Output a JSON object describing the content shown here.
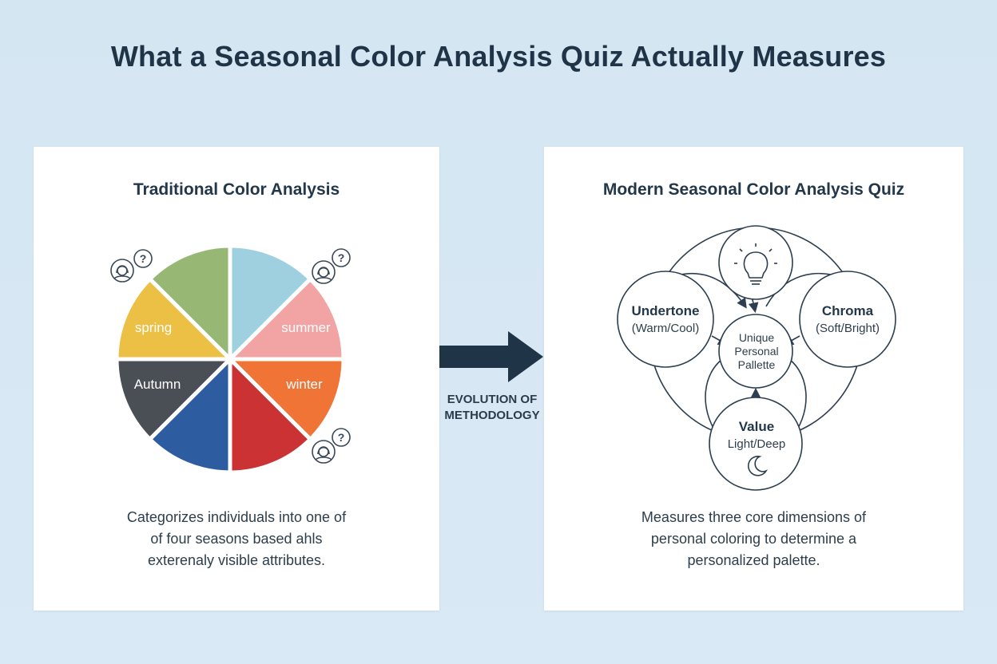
{
  "title": "What a Seasonal Color Analysis Quiz Actually Measures",
  "colors": {
    "background": "#d7e8f4",
    "navy": "#1f3547",
    "spring": "#ecbf45",
    "green": "#97b874",
    "light_blue": "#9fd0df",
    "summer": "#f2a3a4",
    "winter": "#ef7436",
    "red": "#cb3233",
    "blue": "#2e5ca0",
    "autumn": "#4a4f56"
  },
  "left_panel": {
    "title": "Traditional Color Analysis",
    "segments": [
      "spring",
      "summer",
      "Autumn",
      "winter"
    ],
    "description": [
      "Categorizes individuals into one of",
      "of four seasons based ahls",
      "exterenaly visible attributes."
    ],
    "icons": [
      "woman-question-icon",
      "woman-question-icon",
      "woman-question-icon"
    ]
  },
  "transition": {
    "label_line1": "EVOLUTION OF",
    "label_line2": "METHODOLOGY",
    "icon": "right-arrow-icon"
  },
  "right_panel": {
    "title": "Modern Seasonal Color Analysis Quiz",
    "nodes": {
      "undertone": {
        "name": "Undertone",
        "detail": "(Warm/Cool)"
      },
      "chroma": {
        "name": "Chroma",
        "detail": "(Soft/Bright)"
      },
      "value": {
        "name": "Value",
        "detail": "Light/Deep",
        "icon": "moon-icon"
      },
      "top": {
        "icon": "lightbulb-icon"
      },
      "center": {
        "line1": "Unique",
        "line2": "Personal",
        "line3": "Pallette"
      }
    },
    "description": [
      "Measures three core dimensions of",
      "personal coloring to determine a",
      "personalized palette."
    ]
  }
}
